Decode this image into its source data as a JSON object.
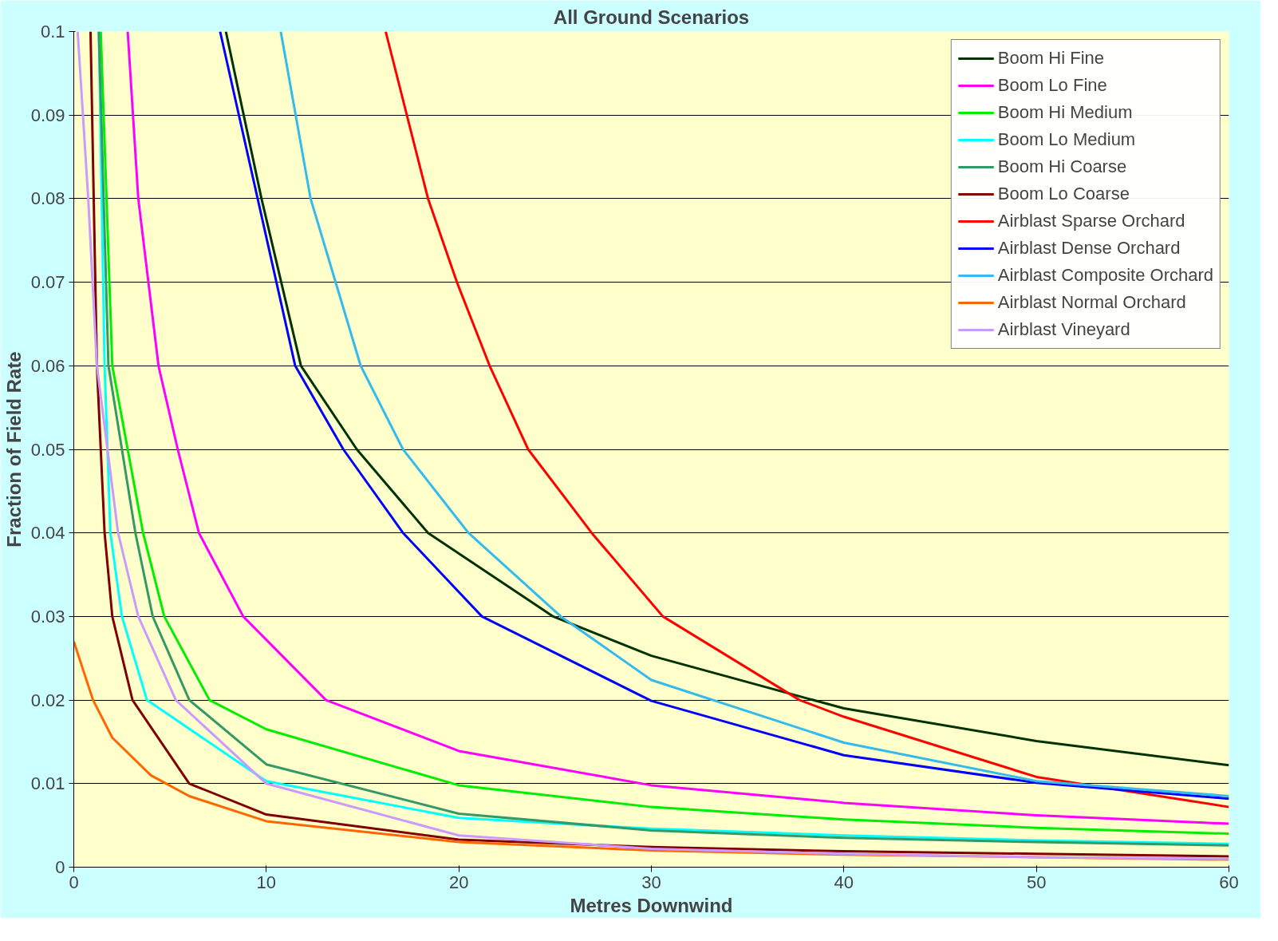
{
  "chart_data": {
    "type": "line",
    "title": "All Ground Scenarios",
    "xlabel": "Metres Downwind",
    "ylabel": "Fraction of Field Rate",
    "xlim": [
      0,
      60
    ],
    "ylim": [
      0,
      0.1
    ],
    "xticks": [
      0,
      10,
      20,
      30,
      40,
      50,
      60
    ],
    "yticks": [
      0,
      0.01,
      0.02,
      0.03,
      0.04,
      0.05,
      0.06,
      0.07,
      0.08,
      0.09,
      0.1
    ],
    "grid": "y",
    "legend": "top right",
    "marker": "none",
    "line_style": "solid",
    "series": [
      {
        "name": "Boom Hi Fine",
        "color": "#003300",
        "x": [
          7.9,
          9.75,
          11.8,
          14.7,
          18.4,
          24.9,
          30,
          40,
          50,
          60
        ],
        "values": [
          0.1,
          0.08,
          0.06,
          0.05,
          0.04,
          0.03,
          0.0253,
          0.019,
          0.0151,
          0.0122
        ]
      },
      {
        "name": "Boom Lo Fine",
        "color": "#ff00ff",
        "x": [
          2.8,
          3.35,
          4.4,
          5.4,
          6.5,
          8.8,
          13.1,
          20,
          30,
          40,
          50,
          60
        ],
        "values": [
          0.1,
          0.08,
          0.06,
          0.05,
          0.04,
          0.03,
          0.02,
          0.0139,
          0.0098,
          0.0077,
          0.0062,
          0.0052
        ]
      },
      {
        "name": "Boom Hi Medium",
        "color": "#00ee00",
        "x": [
          1.4,
          2.0,
          3.6,
          4.7,
          7.05,
          10,
          20,
          30,
          40,
          50,
          60
        ],
        "values": [
          0.1,
          0.06,
          0.04,
          0.03,
          0.02,
          0.0165,
          0.0098,
          0.0072,
          0.0057,
          0.0047,
          0.004
        ]
      },
      {
        "name": "Boom Lo Medium",
        "color": "#00ffff",
        "x": [
          1.3,
          1.6,
          1.9,
          2.5,
          3.8,
          10,
          20,
          30,
          40,
          50,
          60
        ],
        "values": [
          0.1,
          0.06,
          0.04,
          0.03,
          0.02,
          0.0103,
          0.0059,
          0.0046,
          0.0038,
          0.0032,
          0.0028
        ]
      },
      {
        "name": "Boom Hi Coarse",
        "color": "#339966",
        "x": [
          1.3,
          1.8,
          3.2,
          4.1,
          6.0,
          10,
          20,
          30,
          40,
          50,
          60
        ],
        "values": [
          0.1,
          0.06,
          0.04,
          0.03,
          0.02,
          0.0123,
          0.0064,
          0.0044,
          0.0035,
          0.003,
          0.0026
        ]
      },
      {
        "name": "Boom Lo Coarse",
        "color": "#800000",
        "x": [
          0.87,
          1.2,
          1.6,
          2.0,
          3.05,
          6.0,
          10,
          20,
          30,
          40,
          50,
          60
        ],
        "values": [
          0.1,
          0.06,
          0.04,
          0.03,
          0.02,
          0.01,
          0.0063,
          0.0033,
          0.0024,
          0.0019,
          0.0016,
          0.0013
        ]
      },
      {
        "name": "Airblast Sparse Orchard",
        "color": "#ff0000",
        "x": [
          16.2,
          18.4,
          19.9,
          21.6,
          23.6,
          26.9,
          30.6,
          37.7,
          40,
          50,
          60
        ],
        "values": [
          0.1,
          0.08,
          0.07,
          0.06,
          0.05,
          0.04,
          0.03,
          0.02,
          0.018,
          0.0108,
          0.0072
        ]
      },
      {
        "name": "Airblast Dense Orchard",
        "color": "#0000ff",
        "x": [
          7.6,
          11.5,
          14.0,
          17.1,
          21.2,
          30,
          40,
          50,
          60
        ],
        "values": [
          0.1,
          0.06,
          0.05,
          0.04,
          0.03,
          0.0199,
          0.0134,
          0.0101,
          0.0082
        ]
      },
      {
        "name": "Airblast Composite Orchard",
        "color": "#33bbee",
        "x": [
          10.75,
          12.3,
          14.9,
          17.1,
          20.5,
          25.3,
          30,
          40,
          50,
          60
        ],
        "values": [
          0.1,
          0.08,
          0.06,
          0.05,
          0.04,
          0.03,
          0.0224,
          0.0149,
          0.0103,
          0.0085
        ]
      },
      {
        "name": "Airblast Normal Orchard",
        "color": "#ff6600",
        "x": [
          0,
          1,
          2,
          4,
          6,
          10,
          20,
          30,
          40,
          50,
          60
        ],
        "values": [
          0.027,
          0.02,
          0.0155,
          0.011,
          0.0085,
          0.0055,
          0.003,
          0.002,
          0.0015,
          0.0012,
          0.0009
        ]
      },
      {
        "name": "Airblast Vineyard",
        "color": "#cc99ff",
        "x": [
          0.2,
          0.75,
          1.2,
          2.3,
          3.35,
          5.3,
          10,
          20,
          30,
          40,
          50,
          60
        ],
        "values": [
          0.1,
          0.08,
          0.06,
          0.04,
          0.03,
          0.02,
          0.01,
          0.0038,
          0.0022,
          0.0016,
          0.0012,
          0.001
        ]
      }
    ]
  }
}
